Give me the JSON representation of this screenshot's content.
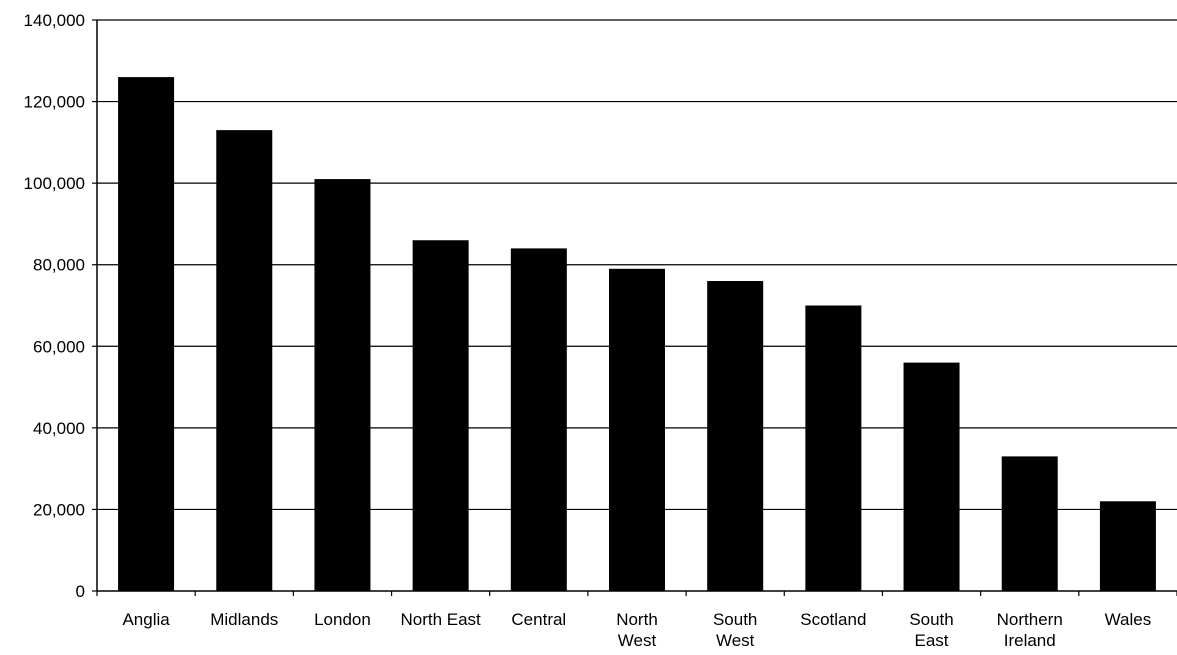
{
  "chart_data": {
    "type": "bar",
    "categories": [
      [
        "Anglia"
      ],
      [
        "Midlands"
      ],
      [
        "London"
      ],
      [
        "North East"
      ],
      [
        "Central"
      ],
      [
        "North",
        "West"
      ],
      [
        "South",
        "West"
      ],
      [
        "Scotland"
      ],
      [
        "South",
        "East"
      ],
      [
        "Northern",
        "Ireland"
      ],
      [
        "Wales"
      ]
    ],
    "values": [
      126000,
      113000,
      101000,
      86000,
      84000,
      79000,
      76000,
      70000,
      56000,
      33000,
      22000
    ],
    "ylim": [
      0,
      140000
    ],
    "yticks": [
      0,
      20000,
      40000,
      60000,
      80000,
      100000,
      120000,
      140000
    ],
    "ytick_labels": [
      "0",
      "20,000",
      "40,000",
      "60,000",
      "80,000",
      "100,000",
      "120,000",
      "140,000"
    ],
    "grid": true,
    "bar_color": "#000000",
    "title": "",
    "xlabel": "",
    "ylabel": ""
  }
}
